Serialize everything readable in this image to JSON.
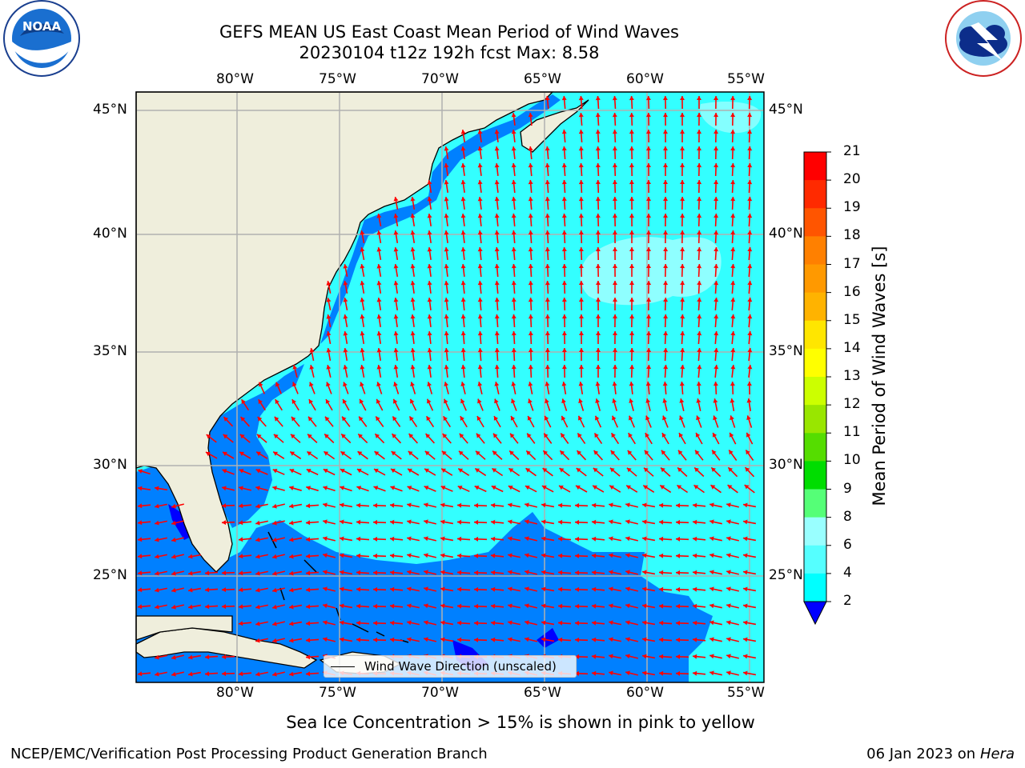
{
  "header": {
    "title_line1": "GEFS MEAN US East Coast Mean Period of Wind Waves",
    "title_line2": "20230104 t12z 192h fcst   Max: 8.58"
  },
  "logos": {
    "noaa_text": "NOAA",
    "noaa_ring_text": "NATIONAL OCEANIC AND ATMOSPHERIC ADMINISTRATION · U.S. DEPARTMENT OF COMMERCE",
    "nws_ring_text": "NATIONAL WEATHER SERVICE"
  },
  "map": {
    "lon_labels": [
      "80°W",
      "75°W",
      "70°W",
      "65°W",
      "60°W",
      "55°W"
    ],
    "lat_labels": [
      "45°N",
      "40°N",
      "35°N",
      "30°N",
      "25°N"
    ],
    "legend_label": "Wind Wave Direction (unscaled)",
    "colors": {
      "land": "#efeedc",
      "ocean_cyan": "#33ffff",
      "ocean_blue": "#0080ff",
      "ocean_light": "#99ffff",
      "ocean_dark": "#0000ff",
      "arrow": "#ff0000",
      "grid": "#b0b0b0"
    }
  },
  "colorbar": {
    "title": "Mean Period of Wind Waves [s]",
    "ticks": [
      "21",
      "20",
      "19",
      "18",
      "17",
      "16",
      "15",
      "14",
      "13",
      "12",
      "11",
      "10",
      "9",
      "8",
      "6",
      "4",
      "2"
    ],
    "colors": [
      "#ff0000",
      "#ff2a00",
      "#ff5500",
      "#ff8000",
      "#ff9900",
      "#ffb300",
      "#ffe600",
      "#ffff00",
      "#ccff00",
      "#99e600",
      "#55dd00",
      "#00dd00",
      "#55ff77",
      "#99ffff",
      "#55ffff",
      "#00ffff",
      "#0080ff",
      "#0000ff"
    ]
  },
  "footer": {
    "sea_ice_note": "Sea Ice Concentration > 15% is shown in pink to yellow",
    "branch": "NCEP/EMC/Verification Post Processing Product Generation Branch",
    "date": "06 Jan 2023 on",
    "machine": "Hera"
  }
}
